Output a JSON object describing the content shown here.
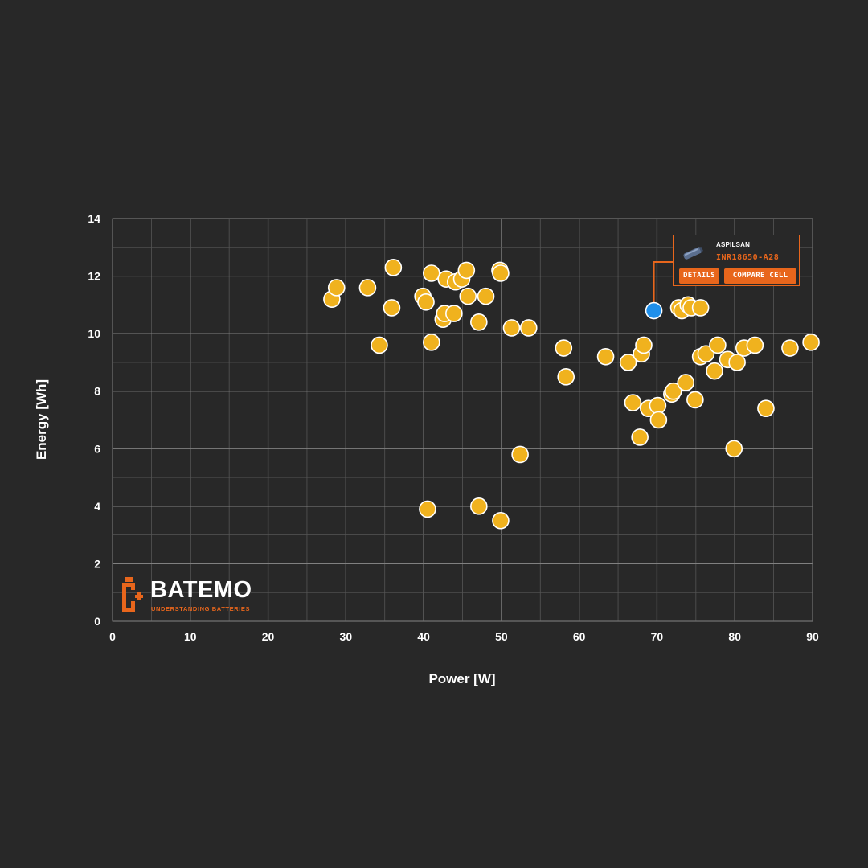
{
  "chart_data": {
    "type": "scatter",
    "xlabel": "Power [W]",
    "ylabel": "Energy [Wh]",
    "xlim": [
      0,
      90
    ],
    "ylim": [
      0,
      14
    ],
    "xticks": [
      0,
      10,
      20,
      30,
      40,
      50,
      60,
      70,
      80,
      90
    ],
    "yticks": [
      0,
      2,
      4,
      6,
      8,
      10,
      12,
      14
    ],
    "grid": true,
    "colors": {
      "point": "#f0b21e",
      "highlight": "#1f8fea",
      "accent": "#e8661c",
      "background": "#282828",
      "grid": "#6e6e6e"
    },
    "points": [
      {
        "x": 28.2,
        "y": 11.2
      },
      {
        "x": 28.8,
        "y": 11.6
      },
      {
        "x": 32.8,
        "y": 11.6
      },
      {
        "x": 34.3,
        "y": 9.6
      },
      {
        "x": 35.9,
        "y": 10.9
      },
      {
        "x": 36.1,
        "y": 12.3
      },
      {
        "x": 39.9,
        "y": 11.3
      },
      {
        "x": 40.3,
        "y": 11.1
      },
      {
        "x": 41.0,
        "y": 12.1
      },
      {
        "x": 41.0,
        "y": 9.7
      },
      {
        "x": 42.5,
        "y": 10.5
      },
      {
        "x": 42.7,
        "y": 10.7
      },
      {
        "x": 42.9,
        "y": 11.9
      },
      {
        "x": 43.9,
        "y": 10.7
      },
      {
        "x": 44.1,
        "y": 11.8
      },
      {
        "x": 44.9,
        "y": 11.9
      },
      {
        "x": 45.5,
        "y": 12.2
      },
      {
        "x": 45.7,
        "y": 11.3
      },
      {
        "x": 47.1,
        "y": 10.4
      },
      {
        "x": 48.0,
        "y": 11.3
      },
      {
        "x": 49.8,
        "y": 12.2
      },
      {
        "x": 49.9,
        "y": 12.1
      },
      {
        "x": 51.3,
        "y": 10.2
      },
      {
        "x": 53.5,
        "y": 10.2
      },
      {
        "x": 40.5,
        "y": 3.9
      },
      {
        "x": 47.1,
        "y": 4.0
      },
      {
        "x": 49.9,
        "y": 3.5
      },
      {
        "x": 52.4,
        "y": 5.8
      },
      {
        "x": 58.0,
        "y": 9.5
      },
      {
        "x": 58.3,
        "y": 8.5
      },
      {
        "x": 63.4,
        "y": 9.2
      },
      {
        "x": 66.3,
        "y": 9.0
      },
      {
        "x": 66.9,
        "y": 7.6
      },
      {
        "x": 67.8,
        "y": 6.4
      },
      {
        "x": 68.0,
        "y": 9.3
      },
      {
        "x": 68.3,
        "y": 9.6
      },
      {
        "x": 68.9,
        "y": 7.4
      },
      {
        "x": 70.1,
        "y": 7.5
      },
      {
        "x": 70.2,
        "y": 7.0
      },
      {
        "x": 71.9,
        "y": 7.9
      },
      {
        "x": 72.1,
        "y": 8.0
      },
      {
        "x": 72.8,
        "y": 10.9
      },
      {
        "x": 73.2,
        "y": 10.8
      },
      {
        "x": 73.7,
        "y": 8.3
      },
      {
        "x": 74.0,
        "y": 11.0
      },
      {
        "x": 74.4,
        "y": 10.9
      },
      {
        "x": 74.9,
        "y": 7.7
      },
      {
        "x": 75.6,
        "y": 10.9
      },
      {
        "x": 75.6,
        "y": 9.2
      },
      {
        "x": 76.3,
        "y": 9.3
      },
      {
        "x": 77.4,
        "y": 8.7
      },
      {
        "x": 77.8,
        "y": 9.6
      },
      {
        "x": 79.1,
        "y": 9.1
      },
      {
        "x": 79.9,
        "y": 6.0
      },
      {
        "x": 80.3,
        "y": 9.0
      },
      {
        "x": 81.2,
        "y": 9.5
      },
      {
        "x": 82.6,
        "y": 9.6
      },
      {
        "x": 84.0,
        "y": 7.4
      },
      {
        "x": 87.1,
        "y": 9.5
      },
      {
        "x": 89.8,
        "y": 9.7
      }
    ],
    "highlight": {
      "x": 69.6,
      "y": 10.8,
      "brand": "ASPILSAN",
      "model": "INR18650-A28"
    }
  },
  "tooltip": {
    "brand": "ASPILSAN",
    "model": "INR18650-A28",
    "details_label": "DETAILS",
    "compare_label": "COMPARE CELL",
    "icon": "battery-cell-icon"
  },
  "logo": {
    "name": "BATEMO",
    "tagline": "UNDERSTANDING BATTERIES",
    "icon": "batemo-logo-icon"
  }
}
